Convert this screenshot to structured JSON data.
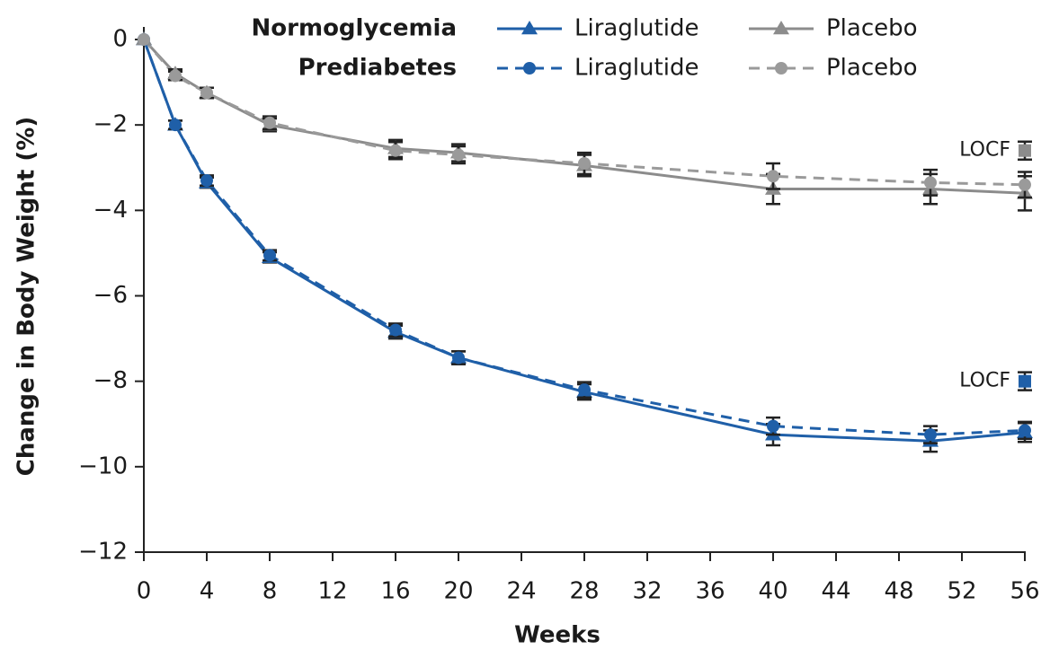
{
  "chart_data": {
    "type": "line",
    "x_label": "Weeks",
    "y_label": "Change in Body Weight (%)",
    "x": [
      0,
      2,
      4,
      8,
      16,
      20,
      28,
      40,
      50,
      56
    ],
    "xlim": [
      0,
      56
    ],
    "xticks": [
      0,
      4,
      8,
      12,
      16,
      20,
      24,
      28,
      32,
      36,
      40,
      44,
      48,
      52,
      56
    ],
    "ylim": [
      -12,
      0
    ],
    "yticks": [
      0,
      {
        "value": -2,
        "label": "−2"
      },
      {
        "value": -4,
        "label": "−4"
      },
      {
        "value": -6,
        "label": "−6"
      },
      {
        "value": -8,
        "label": "−8"
      },
      {
        "value": -10,
        "label": "−10"
      },
      {
        "value": -12,
        "label": "−12"
      }
    ],
    "series": [
      {
        "group": "Normoglycemia",
        "name": "Liraglutide",
        "color": "#1f5fa8",
        "line_style": "solid",
        "marker": "triangle",
        "values": [
          0,
          -2.0,
          -3.35,
          -5.1,
          -6.85,
          -7.45,
          -8.25,
          -9.25,
          -9.4,
          -9.2
        ],
        "errors": [
          0,
          0.1,
          0.12,
          0.12,
          0.15,
          0.15,
          0.18,
          0.25,
          0.25,
          0.22
        ]
      },
      {
        "group": "Normoglycemia",
        "name": "Placebo",
        "color": "#8c8c8c",
        "line_style": "solid",
        "marker": "triangle",
        "values": [
          0,
          -0.8,
          -1.25,
          -2.0,
          -2.55,
          -2.65,
          -2.95,
          -3.5,
          -3.5,
          -3.6
        ],
        "errors": [
          0,
          0.1,
          0.12,
          0.15,
          0.2,
          0.2,
          0.25,
          0.35,
          0.35,
          0.4
        ]
      },
      {
        "group": "Prediabetes",
        "name": "Liraglutide",
        "color": "#1f5fa8",
        "line_style": "dashed",
        "marker": "circle",
        "values": [
          0,
          -2.0,
          -3.3,
          -5.05,
          -6.8,
          -7.45,
          -8.2,
          -9.05,
          -9.25,
          -9.15
        ],
        "errors": [
          0,
          0.1,
          0.12,
          0.12,
          0.15,
          0.15,
          0.18,
          0.2,
          0.2,
          0.2
        ]
      },
      {
        "group": "Prediabetes",
        "name": "Placebo",
        "color": "#9a9a9a",
        "line_style": "dashed",
        "marker": "circle",
        "values": [
          0,
          -0.85,
          -1.25,
          -1.95,
          -2.6,
          -2.7,
          -2.9,
          -3.2,
          -3.35,
          -3.4
        ],
        "errors": [
          0,
          0.1,
          0.12,
          0.15,
          0.2,
          0.2,
          0.25,
          0.3,
          0.3,
          0.3
        ]
      }
    ],
    "annotations": [
      {
        "text": "LOCF",
        "x": 56,
        "y": -2.6,
        "color": "#8c8c8c"
      },
      {
        "text": "LOCF",
        "x": 56,
        "y": -8.0,
        "color": "#1f5fa8"
      }
    ]
  }
}
